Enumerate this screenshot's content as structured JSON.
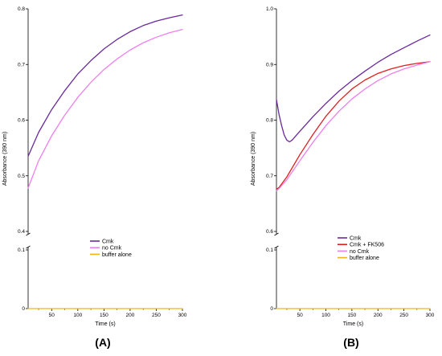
{
  "figure": {
    "panel_labels": [
      "(A)",
      "(B)"
    ]
  },
  "colors": {
    "cmk": "#6a2a9c",
    "no_cmk": "#ee7fee",
    "buffer_alone": "#f2b31e",
    "cmk_fk506": "#e02020"
  },
  "chart_data": [
    {
      "type": "line",
      "panel": "(A)",
      "xlabel": "Time (s)",
      "ylabel": "Absorbance (390 nm)",
      "xlim": [
        5,
        300
      ],
      "x_ticks": [
        50,
        100,
        150,
        200,
        250,
        300
      ],
      "y_axis_break": true,
      "ylim_upper": [
        0.4,
        0.8
      ],
      "y_ticks_upper": [
        0.4,
        0.5,
        0.6,
        0.7,
        0.8
      ],
      "ylim_lower": [
        0,
        0.1
      ],
      "y_ticks_lower": [
        0,
        0.1
      ],
      "grid": false,
      "legend_position": "lower-center",
      "series": [
        {
          "name": "Cmk",
          "color": "#6a2a9c",
          "x": [
            5,
            25,
            50,
            75,
            100,
            125,
            150,
            175,
            200,
            225,
            250,
            275,
            300
          ],
          "y": [
            0.535,
            0.578,
            0.619,
            0.653,
            0.683,
            0.707,
            0.728,
            0.745,
            0.759,
            0.77,
            0.778,
            0.784,
            0.789
          ]
        },
        {
          "name": "no Cmk",
          "color": "#ee7fee",
          "x": [
            5,
            25,
            50,
            75,
            100,
            125,
            150,
            175,
            200,
            225,
            250,
            275,
            300
          ],
          "y": [
            0.478,
            0.527,
            0.572,
            0.609,
            0.641,
            0.668,
            0.691,
            0.71,
            0.726,
            0.739,
            0.749,
            0.757,
            0.763
          ]
        },
        {
          "name": "buffer alone",
          "color": "#f2b31e",
          "x": [
            5,
            100,
            200,
            300
          ],
          "y": [
            0,
            0,
            0,
            0
          ]
        }
      ]
    },
    {
      "type": "line",
      "panel": "(B)",
      "xlabel": "Time (s)",
      "ylabel": "Absorbance (390 nm)",
      "xlim": [
        5,
        300
      ],
      "x_ticks": [
        50,
        100,
        150,
        200,
        250,
        300
      ],
      "y_axis_break": true,
      "ylim_upper": [
        0.6,
        1.0
      ],
      "y_ticks_upper": [
        0.6,
        0.7,
        0.8,
        0.9,
        1.0
      ],
      "ylim_lower": [
        0,
        0.1
      ],
      "y_ticks_lower": [
        0,
        0.1
      ],
      "grid": false,
      "legend_position": "lower-center",
      "series": [
        {
          "name": "Cmk",
          "color": "#6a2a9c",
          "x": [
            5,
            10,
            15,
            20,
            25,
            30,
            35,
            50,
            75,
            100,
            125,
            150,
            175,
            200,
            225,
            250,
            275,
            300
          ],
          "y": [
            0.837,
            0.81,
            0.79,
            0.773,
            0.764,
            0.761,
            0.764,
            0.78,
            0.806,
            0.83,
            0.852,
            0.871,
            0.888,
            0.904,
            0.918,
            0.93,
            0.942,
            0.953
          ]
        },
        {
          "name": "Cmk + FK506",
          "color": "#e02020",
          "x": [
            5,
            10,
            25,
            50,
            75,
            100,
            125,
            150,
            175,
            200,
            225,
            250,
            275,
            300
          ],
          "y": [
            0.676,
            0.679,
            0.698,
            0.738,
            0.774,
            0.807,
            0.834,
            0.856,
            0.872,
            0.884,
            0.892,
            0.898,
            0.902,
            0.905
          ]
        },
        {
          "name": "no Cmk",
          "color": "#ee7fee",
          "x": [
            5,
            10,
            25,
            50,
            75,
            100,
            125,
            150,
            175,
            200,
            225,
            250,
            275,
            300
          ],
          "y": [
            0.673,
            0.677,
            0.693,
            0.727,
            0.76,
            0.79,
            0.816,
            0.838,
            0.856,
            0.871,
            0.883,
            0.892,
            0.899,
            0.905
          ]
        },
        {
          "name": "buffer alone",
          "color": "#f2b31e",
          "x": [
            5,
            100,
            200,
            300
          ],
          "y": [
            0,
            0,
            0,
            0
          ]
        }
      ]
    }
  ]
}
